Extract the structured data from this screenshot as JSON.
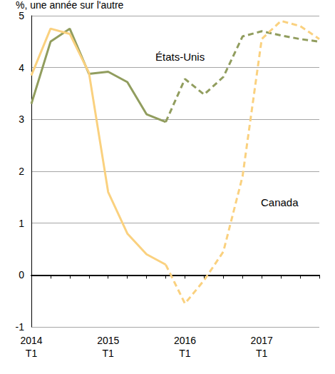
{
  "chart_data": {
    "type": "line",
    "y_label": "%, une année sur l'autre",
    "categories": [
      "2014\nT1",
      null,
      null,
      null,
      "2015\nT1",
      null,
      null,
      null,
      "2016\nT1",
      null,
      null,
      null,
      "2017\nT1",
      null,
      null,
      null
    ],
    "series": [
      {
        "name": "États-Unis",
        "color": "#919d5e",
        "line_style": "solid",
        "values": [
          3.3,
          4.5,
          4.75,
          3.88,
          3.92,
          3.72,
          3.1,
          2.95,
          null,
          null,
          null,
          null,
          null,
          null,
          null,
          null
        ]
      },
      {
        "name": "États-Unis",
        "color": "#919d5e",
        "line_style": "dashed",
        "values": [
          null,
          null,
          null,
          null,
          null,
          null,
          null,
          2.95,
          3.78,
          3.48,
          3.82,
          4.6,
          4.7,
          4.62,
          4.55,
          4.5
        ]
      },
      {
        "name": "Canada",
        "color": "#fad17f",
        "line_style": "solid",
        "values": [
          3.85,
          4.75,
          4.65,
          3.9,
          1.6,
          0.8,
          0.4,
          0.2,
          null,
          null,
          null,
          null,
          null,
          null,
          null,
          null
        ]
      },
      {
        "name": "Canada",
        "color": "#fad17f",
        "line_style": "dashed",
        "values": [
          null,
          null,
          null,
          null,
          null,
          null,
          null,
          0.2,
          -0.55,
          -0.1,
          0.45,
          1.9,
          4.55,
          4.9,
          4.8,
          4.55
        ]
      }
    ],
    "ylim": [
      -1,
      5
    ],
    "yticks": [
      -1,
      0,
      1,
      2,
      3,
      4,
      5
    ],
    "grid": true
  }
}
